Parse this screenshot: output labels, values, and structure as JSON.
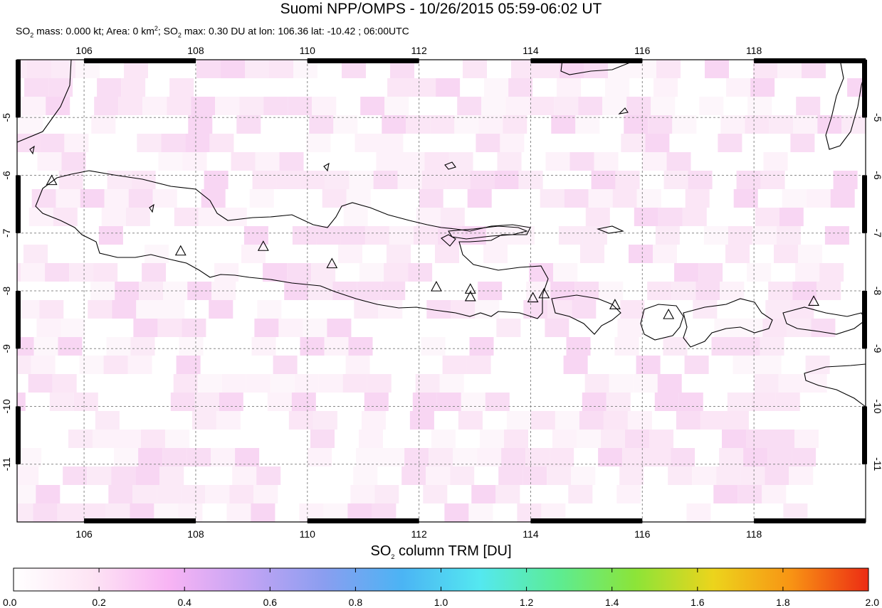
{
  "title": "Suomi NPP/OMPS - 10/26/2015 05:59-06:02 UT",
  "subtitle": {
    "mass_label": "SO",
    "mass_sub": "2",
    "mass_text": " mass: 0.000 kt; Area: 0 km",
    "area_sup": "2",
    "max_label": "; SO",
    "max_sub": "2",
    "max_text": " max: 0.30 DU at lon: 106.36 lat: -10.42 ; 06:00UTC"
  },
  "map": {
    "lon_ticks": [
      "106",
      "108",
      "110",
      "112",
      "114",
      "116",
      "118"
    ],
    "lat_ticks": [
      "-5",
      "-6",
      "-7",
      "-8",
      "-9",
      "-10",
      "-11"
    ],
    "lon_range": [
      104.8,
      120.0
    ],
    "lat_range": [
      -12.0,
      -4.0
    ],
    "volcano_markers": [
      [
        105.42,
        -6.1
      ],
      [
        107.73,
        -7.32
      ],
      [
        109.21,
        -7.24
      ],
      [
        110.44,
        -7.54
      ],
      [
        112.31,
        -7.94
      ],
      [
        112.92,
        -7.98
      ],
      [
        112.92,
        -8.11
      ],
      [
        114.04,
        -8.13
      ],
      [
        114.24,
        -8.06
      ],
      [
        115.51,
        -8.25
      ],
      [
        116.47,
        -8.42
      ],
      [
        119.07,
        -8.19
      ]
    ]
  },
  "colorbar": {
    "title_prefix": "SO",
    "title_sub": "2",
    "title_suffix": " column TRM [DU]",
    "tick_labels": [
      "0.0",
      "0.2",
      "0.4",
      "0.6",
      "0.8",
      "1.0",
      "1.2",
      "1.4",
      "1.6",
      "1.8",
      "2.0"
    ],
    "colors": [
      "#ffffff",
      "#fde4f4",
      "#f8b4f4",
      "#c4a4f4",
      "#8a9ef0",
      "#4bb4f4",
      "#54e8f0",
      "#5cec94",
      "#8ce438",
      "#ecd41c",
      "#f89414",
      "#ec2c14"
    ]
  }
}
